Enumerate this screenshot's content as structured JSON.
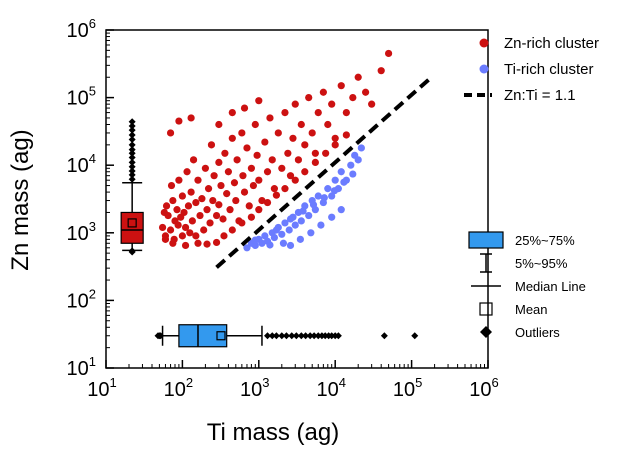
{
  "chart_data": {
    "type": "scatter",
    "xlabel": "Ti mass (ag)",
    "ylabel": "Zn mass (ag)",
    "xscale": "log",
    "yscale": "log",
    "xlim": [
      10,
      1000000
    ],
    "ylim": [
      10,
      1000000
    ],
    "x_ticks": [
      {
        "value": 10,
        "base": "10",
        "exp": "1"
      },
      {
        "value": 100,
        "base": "10",
        "exp": "2"
      },
      {
        "value": 1000,
        "base": "10",
        "exp": "3"
      },
      {
        "value": 10000,
        "base": "10",
        "exp": "4"
      },
      {
        "value": 100000,
        "base": "10",
        "exp": "5"
      },
      {
        "value": 1000000,
        "base": "10",
        "exp": "6"
      }
    ],
    "y_ticks": [
      {
        "value": 10,
        "base": "10",
        "exp": "1"
      },
      {
        "value": 100,
        "base": "10",
        "exp": "2"
      },
      {
        "value": 1000,
        "base": "10",
        "exp": "3"
      },
      {
        "value": 10000,
        "base": "10",
        "exp": "4"
      },
      {
        "value": 100000,
        "base": "10",
        "exp": "5"
      },
      {
        "value": 1000000,
        "base": "10",
        "exp": "6"
      }
    ],
    "series": [
      {
        "name": "Zn-rich cluster",
        "color": "#cc1111",
        "marker": "circle",
        "points": [
          [
            55,
            1200
          ],
          [
            60,
            900
          ],
          [
            62,
            2500
          ],
          [
            65,
            1800
          ],
          [
            70,
            1100
          ],
          [
            72,
            5000
          ],
          [
            75,
            3000
          ],
          [
            78,
            800
          ],
          [
            80,
            1500
          ],
          [
            85,
            2200
          ],
          [
            88,
            1300
          ],
          [
            90,
            6000
          ],
          [
            95,
            1700
          ],
          [
            100,
            900
          ],
          [
            100,
            3500
          ],
          [
            105,
            2000
          ],
          [
            110,
            1200
          ],
          [
            115,
            8000
          ],
          [
            120,
            2500
          ],
          [
            125,
            1000
          ],
          [
            130,
            4000
          ],
          [
            135,
            1500
          ],
          [
            140,
            12000
          ],
          [
            150,
            2800
          ],
          [
            150,
            900
          ],
          [
            160,
            6000
          ],
          [
            170,
            1800
          ],
          [
            180,
            3200
          ],
          [
            190,
            1100
          ],
          [
            200,
            9000
          ],
          [
            210,
            2200
          ],
          [
            220,
            4500
          ],
          [
            230,
            1400
          ],
          [
            240,
            20000
          ],
          [
            250,
            3000
          ],
          [
            260,
            7000
          ],
          [
            280,
            1800
          ],
          [
            300,
            11000
          ],
          [
            300,
            2600
          ],
          [
            320,
            5000
          ],
          [
            340,
            1600
          ],
          [
            360,
            15000
          ],
          [
            380,
            3800
          ],
          [
            400,
            8000
          ],
          [
            420,
            2200
          ],
          [
            450,
            25000
          ],
          [
            480,
            5500
          ],
          [
            500,
            3000
          ],
          [
            520,
            12000
          ],
          [
            550,
            1500
          ],
          [
            600,
            30000
          ],
          [
            620,
            7000
          ],
          [
            650,
            4000
          ],
          [
            700,
            18000
          ],
          [
            750,
            2500
          ],
          [
            800,
            9000
          ],
          [
            850,
            5000
          ],
          [
            900,
            40000
          ],
          [
            950,
            14000
          ],
          [
            1000,
            6000
          ],
          [
            1100,
            3000
          ],
          [
            1200,
            22000
          ],
          [
            1300,
            8000
          ],
          [
            1400,
            50000
          ],
          [
            1500,
            12000
          ],
          [
            1600,
            4500
          ],
          [
            1800,
            30000
          ],
          [
            2000,
            9000
          ],
          [
            2200,
            60000
          ],
          [
            2400,
            15000
          ],
          [
            2600,
            7000
          ],
          [
            2800,
            25000
          ],
          [
            3000,
            80000
          ],
          [
            3300,
            12000
          ],
          [
            3600,
            40000
          ],
          [
            4000,
            20000
          ],
          [
            4500,
            100000
          ],
          [
            5000,
            30000
          ],
          [
            5500,
            15000
          ],
          [
            6000,
            60000
          ],
          [
            7000,
            120000
          ],
          [
            8000,
            40000
          ],
          [
            9000,
            80000
          ],
          [
            10000,
            25000
          ],
          [
            12000,
            150000
          ],
          [
            14000,
            60000
          ],
          [
            17000,
            100000
          ],
          [
            20000,
            200000
          ],
          [
            25000,
            120000
          ],
          [
            30000,
            80000
          ],
          [
            50000,
            450000
          ],
          [
            40000,
            250000
          ],
          [
            130,
            50000
          ],
          [
            70,
            30000
          ],
          [
            90,
            45000
          ],
          [
            60,
            800
          ],
          [
            58,
            2000
          ],
          [
            75,
            700
          ],
          [
            110,
            650
          ],
          [
            160,
            700
          ],
          [
            210,
            680
          ],
          [
            280,
            720
          ],
          [
            350,
            900
          ],
          [
            450,
            1100
          ],
          [
            600,
            1400
          ],
          [
            800,
            1700
          ],
          [
            1000,
            2200
          ],
          [
            1300,
            2800
          ],
          [
            1700,
            3600
          ],
          [
            2200,
            4500
          ],
          [
            3000,
            6000
          ],
          [
            4000,
            8000
          ],
          [
            5500,
            11000
          ],
          [
            7500,
            15000
          ],
          [
            10000,
            20000
          ],
          [
            14000,
            28000
          ],
          [
            300,
            40000
          ],
          [
            450,
            60000
          ],
          [
            650,
            70000
          ],
          [
            1000,
            90000
          ]
        ]
      },
      {
        "name": "Ti-rich cluster",
        "color": "#6b7cff",
        "marker": "circle",
        "points": [
          [
            700,
            600
          ],
          [
            800,
            700
          ],
          [
            900,
            650
          ],
          [
            1000,
            800
          ],
          [
            1100,
            700
          ],
          [
            1200,
            900
          ],
          [
            1300,
            750
          ],
          [
            1500,
            1000
          ],
          [
            1600,
            850
          ],
          [
            1800,
            1200
          ],
          [
            2000,
            950
          ],
          [
            2200,
            1400
          ],
          [
            2500,
            1100
          ],
          [
            2800,
            1700
          ],
          [
            3000,
            1300
          ],
          [
            3300,
            2000
          ],
          [
            3600,
            1500
          ],
          [
            4000,
            2500
          ],
          [
            4500,
            1800
          ],
          [
            5000,
            3000
          ],
          [
            5500,
            2200
          ],
          [
            6000,
            3500
          ],
          [
            7000,
            2800
          ],
          [
            8000,
            4500
          ],
          [
            9000,
            3500
          ],
          [
            10000,
            6000
          ],
          [
            11000,
            4500
          ],
          [
            12000,
            8000
          ],
          [
            14000,
            6000
          ],
          [
            16000,
            10000
          ],
          [
            18000,
            14000
          ],
          [
            20000,
            12000
          ],
          [
            22000,
            18000
          ],
          [
            2600,
            650
          ],
          [
            3500,
            800
          ],
          [
            4800,
            1000
          ],
          [
            6500,
            1300
          ],
          [
            9000,
            1700
          ],
          [
            12000,
            2200
          ],
          [
            900,
            780
          ],
          [
            1400,
            660
          ],
          [
            2100,
            700
          ],
          [
            1700,
            1100
          ],
          [
            2600,
            1600
          ],
          [
            3800,
            2100
          ],
          [
            5200,
            2600
          ],
          [
            7200,
            3300
          ],
          [
            9800,
            4200
          ],
          [
            13000,
            5600
          ],
          [
            17000,
            7400
          ]
        ]
      }
    ],
    "line": {
      "name": "Zn:Ti = 1.1",
      "ratio": 1.1,
      "x_range": [
        280,
        180000
      ],
      "color": "#000000",
      "style": "dashed"
    },
    "boxplots": [
      {
        "axis": "y",
        "position_x": 22,
        "color": "#cc1111",
        "q1": 700,
        "median": 1100,
        "q3": 2000,
        "p5": 550,
        "p95": 5500,
        "mean": 1400,
        "outliers_low": [
          520,
          540
        ],
        "outliers_high": [
          6200,
          7200,
          8200,
          9500,
          11000,
          13000,
          15000,
          17000,
          20000,
          24000,
          28000,
          33000,
          38000,
          44000
        ]
      },
      {
        "axis": "x",
        "position_y": 30,
        "color": "#3399ee",
        "q1": 90,
        "median": 160,
        "q3": 380,
        "p5": 55,
        "p95": 1100,
        "mean": 320,
        "outliers_low": [
          48,
          50,
          52
        ],
        "outliers_high": [
          1300,
          1500,
          1700,
          2000,
          2300,
          2700,
          3100,
          3600,
          4100,
          4700,
          5300,
          6000,
          6700,
          7400,
          8200,
          9000,
          10000,
          11000,
          44000,
          110000
        ]
      }
    ],
    "legend": {
      "placement": "top-right",
      "entries": [
        "Zn-rich cluster",
        "Ti-rich cluster",
        "Zn:Ti = 1.1"
      ]
    },
    "box_legend": {
      "placement": "right",
      "entries": [
        "25%~75%",
        "5%~95%",
        "Median Line",
        "Mean",
        "Outliers"
      ]
    },
    "grid": false
  }
}
